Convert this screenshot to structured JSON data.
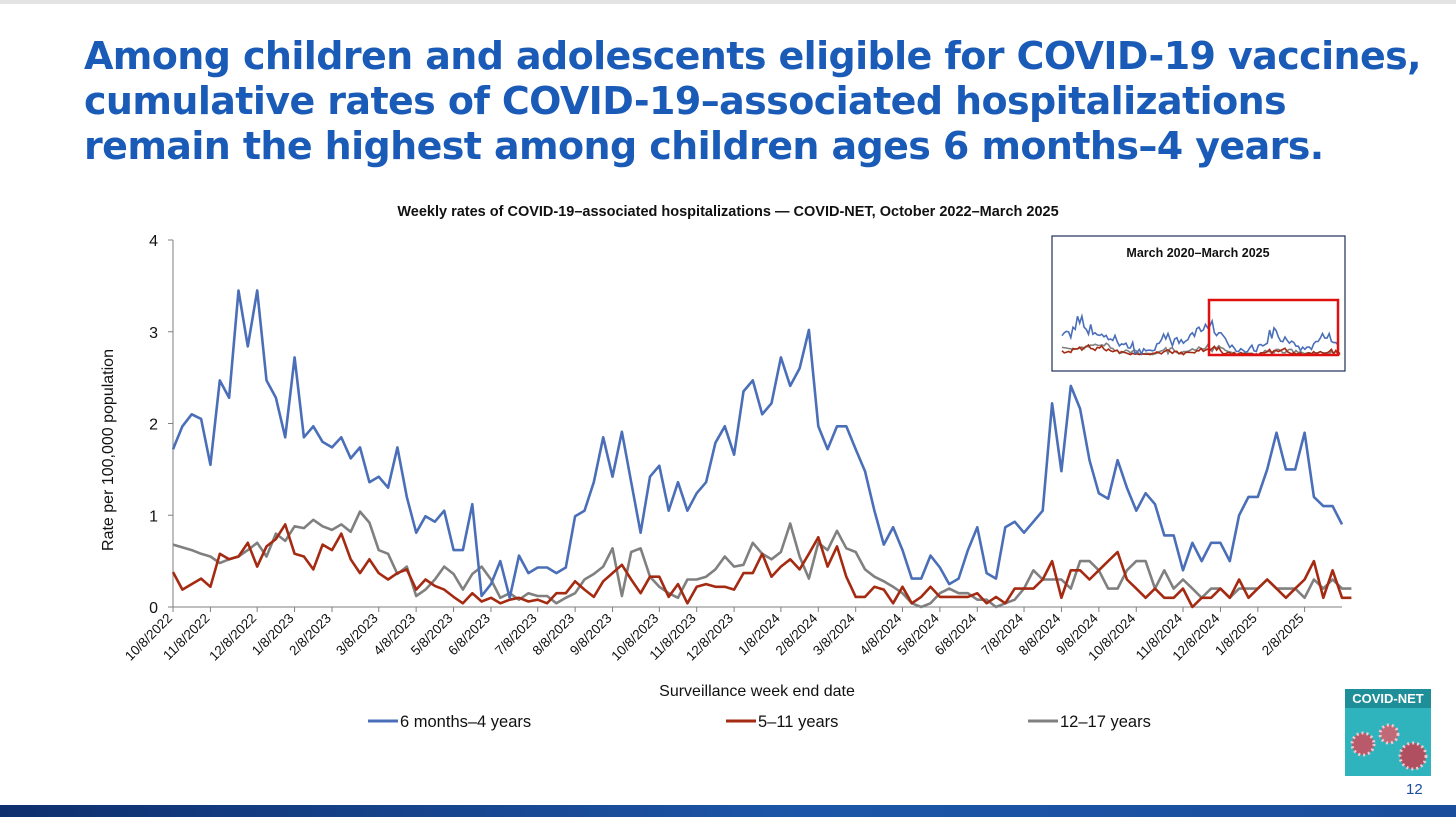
{
  "slide": {
    "title_lines": [
      "Among children and adolescents eligible for COVID-19 vaccines,",
      "cumulative rates of COVID-19–associated hospitalizations",
      "remain the highest among children ages 6 months–4 years."
    ],
    "page_number": "12",
    "logo_label": "COVID-NET",
    "colors": {
      "title": "#1a5bb8",
      "footer": "#1d56a8",
      "highlight_box": "#e01010"
    }
  },
  "chart_data": {
    "type": "line",
    "title": "Weekly rates of COVID-19–associated hospitalizations — COVID-NET, October 2022–March 2025",
    "xlabel": "Surveillance week end date",
    "ylabel": "Rate per 100,000 population",
    "ylim": [
      0,
      4
    ],
    "yticks": [
      0,
      1,
      2,
      3,
      4
    ],
    "x_tick_labels": [
      "10/8/2022",
      "11/8/2022",
      "12/8/2022",
      "1/8/2023",
      "2/8/2023",
      "3/8/2023",
      "4/8/2023",
      "5/8/2023",
      "6/8/2023",
      "7/8/2023",
      "8/8/2023",
      "9/8/2023",
      "10/8/2023",
      "11/8/2023",
      "12/8/2023",
      "1/8/2024",
      "2/8/2024",
      "3/8/2024",
      "4/8/2024",
      "5/8/2024",
      "6/8/2024",
      "7/8/2024",
      "8/8/2024",
      "9/8/2024",
      "10/8/2024",
      "11/8/2024",
      "12/8/2024",
      "1/8/2025",
      "2/8/2025"
    ],
    "legend_position": "bottom",
    "grid": false,
    "series": [
      {
        "name": "6 months–4 years",
        "color": "#4a6fb8",
        "values": [
          1.72,
          1.97,
          2.1,
          2.05,
          1.55,
          2.47,
          2.28,
          3.45,
          2.84,
          3.45,
          2.47,
          2.28,
          1.85,
          2.72,
          1.85,
          1.97,
          1.8,
          1.74,
          1.85,
          1.62,
          1.74,
          1.36,
          1.42,
          1.3,
          1.74,
          1.2,
          0.81,
          0.99,
          0.93,
          1.05,
          0.62,
          0.62,
          1.12,
          0.12,
          0.25,
          0.5,
          0.1,
          0.56,
          0.37,
          0.43,
          0.43,
          0.37,
          0.43,
          0.99,
          1.05,
          1.36,
          1.85,
          1.42,
          1.91,
          1.36,
          0.81,
          1.42,
          1.54,
          1.05,
          1.36,
          1.05,
          1.24,
          1.36,
          1.79,
          1.97,
          1.66,
          2.35,
          2.47,
          2.1,
          2.22,
          2.72,
          2.41,
          2.6,
          3.02,
          1.97,
          1.72,
          1.97,
          1.97,
          1.72,
          1.48,
          1.05,
          0.68,
          0.87,
          0.62,
          0.31,
          0.31,
          0.56,
          0.43,
          0.25,
          0.31,
          0.62,
          0.87,
          0.37,
          0.31,
          0.87,
          0.93,
          0.81,
          0.93,
          1.05,
          2.22,
          1.48,
          2.41,
          2.16,
          1.6,
          1.24,
          1.18,
          1.6,
          1.3,
          1.05,
          1.24,
          1.12,
          0.78,
          0.78,
          0.4,
          0.7,
          0.5,
          0.7,
          0.7,
          0.5,
          1.0,
          1.2,
          1.2,
          1.5,
          1.9,
          1.5,
          1.5,
          1.9,
          1.2,
          1.1,
          1.1,
          0.9
        ]
      },
      {
        "name": "5–11 years",
        "color": "#a52a12",
        "values": [
          0.38,
          0.19,
          0.25,
          0.31,
          0.22,
          0.58,
          0.52,
          0.55,
          0.7,
          0.44,
          0.66,
          0.74,
          0.9,
          0.58,
          0.55,
          0.41,
          0.68,
          0.62,
          0.8,
          0.52,
          0.37,
          0.52,
          0.37,
          0.3,
          0.37,
          0.41,
          0.19,
          0.3,
          0.23,
          0.19,
          0.11,
          0.04,
          0.15,
          0.06,
          0.1,
          0.04,
          0.08,
          0.1,
          0.06,
          0.08,
          0.04,
          0.15,
          0.15,
          0.28,
          0.19,
          0.11,
          0.28,
          0.37,
          0.46,
          0.3,
          0.15,
          0.33,
          0.33,
          0.11,
          0.25,
          0.04,
          0.22,
          0.25,
          0.22,
          0.22,
          0.19,
          0.37,
          0.37,
          0.58,
          0.33,
          0.44,
          0.52,
          0.41,
          0.58,
          0.76,
          0.44,
          0.66,
          0.33,
          0.11,
          0.11,
          0.22,
          0.19,
          0.04,
          0.22,
          0.04,
          0.11,
          0.22,
          0.11,
          0.11,
          0.11,
          0.11,
          0.15,
          0.04,
          0.11,
          0.04,
          0.2,
          0.2,
          0.2,
          0.3,
          0.5,
          0.1,
          0.4,
          0.4,
          0.3,
          0.4,
          0.5,
          0.6,
          0.3,
          0.2,
          0.1,
          0.2,
          0.1,
          0.1,
          0.2,
          0.0,
          0.1,
          0.1,
          0.2,
          0.1,
          0.3,
          0.1,
          0.2,
          0.3,
          0.2,
          0.1,
          0.2,
          0.3,
          0.5,
          0.1,
          0.4,
          0.1,
          0.1
        ]
      },
      {
        "name": "12–17 years",
        "color": "#808080",
        "values": [
          0.68,
          0.65,
          0.62,
          0.58,
          0.55,
          0.48,
          0.52,
          0.55,
          0.62,
          0.7,
          0.55,
          0.8,
          0.72,
          0.88,
          0.86,
          0.95,
          0.88,
          0.84,
          0.9,
          0.82,
          1.04,
          0.92,
          0.62,
          0.58,
          0.36,
          0.44,
          0.12,
          0.19,
          0.3,
          0.44,
          0.36,
          0.19,
          0.36,
          0.44,
          0.3,
          0.1,
          0.15,
          0.08,
          0.15,
          0.12,
          0.12,
          0.04,
          0.1,
          0.15,
          0.3,
          0.36,
          0.44,
          0.64,
          0.12,
          0.6,
          0.64,
          0.33,
          0.22,
          0.15,
          0.1,
          0.3,
          0.3,
          0.33,
          0.41,
          0.55,
          0.44,
          0.46,
          0.7,
          0.58,
          0.52,
          0.6,
          0.91,
          0.55,
          0.31,
          0.7,
          0.62,
          0.83,
          0.64,
          0.6,
          0.41,
          0.33,
          0.28,
          0.22,
          0.15,
          0.04,
          0.0,
          0.04,
          0.15,
          0.2,
          0.15,
          0.15,
          0.08,
          0.08,
          0.0,
          0.04,
          0.08,
          0.2,
          0.4,
          0.3,
          0.3,
          0.3,
          0.2,
          0.5,
          0.5,
          0.4,
          0.2,
          0.2,
          0.4,
          0.5,
          0.5,
          0.2,
          0.4,
          0.2,
          0.3,
          0.2,
          0.1,
          0.2,
          0.2,
          0.1,
          0.2,
          0.2,
          0.2,
          0.3,
          0.2,
          0.2,
          0.2,
          0.1,
          0.3,
          0.2,
          0.3,
          0.2,
          0.2
        ]
      }
    ],
    "inset": {
      "title": "March 2020–March 2025",
      "highlight_color": "#e01010"
    }
  }
}
